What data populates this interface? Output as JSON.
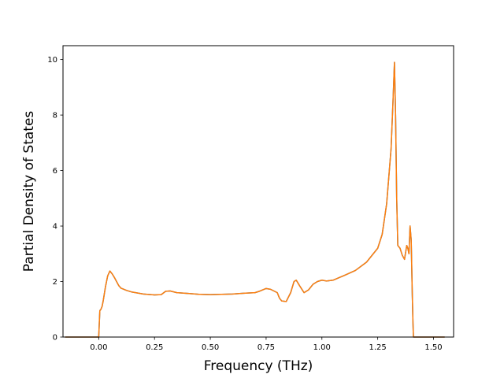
{
  "chart_data": {
    "type": "line",
    "title": "",
    "xlabel": "Frequency (THz)",
    "ylabel": "Partial Density of States",
    "xlim": [
      -0.16,
      1.59
    ],
    "ylim": [
      0,
      10.5
    ],
    "x_ticks": [
      0.0,
      0.25,
      0.5,
      0.75,
      1.0,
      1.25,
      1.5
    ],
    "x_tick_labels": [
      "0.00",
      "0.25",
      "0.50",
      "0.75",
      "1.00",
      "1.25",
      "1.50"
    ],
    "y_ticks": [
      0,
      2,
      4,
      6,
      8,
      10
    ],
    "y_tick_labels": [
      "0",
      "2",
      "4",
      "6",
      "8",
      "10"
    ],
    "grid": false,
    "legend": "none",
    "series": [
      {
        "color": "#1f77b4",
        "x": [
          -0.15,
          -0.05,
          0.0,
          0.005,
          0.01,
          0.015,
          0.02,
          0.03,
          0.04,
          0.05,
          0.06,
          0.07,
          0.08,
          0.09,
          0.1,
          0.125,
          0.15,
          0.2,
          0.25,
          0.28,
          0.3,
          0.32,
          0.35,
          0.4,
          0.45,
          0.5,
          0.55,
          0.6,
          0.65,
          0.7,
          0.72,
          0.75,
          0.77,
          0.8,
          0.81,
          0.82,
          0.84,
          0.86,
          0.875,
          0.885,
          0.9,
          0.92,
          0.94,
          0.96,
          0.98,
          1.0,
          1.02,
          1.05,
          1.08,
          1.1,
          1.15,
          1.2,
          1.25,
          1.27,
          1.29,
          1.31,
          1.32,
          1.325,
          1.33,
          1.335,
          1.34,
          1.35,
          1.36,
          1.37,
          1.38,
          1.385,
          1.39,
          1.395,
          1.4,
          1.405,
          1.408,
          1.41,
          1.5,
          1.55
        ],
        "y": [
          0,
          0,
          0,
          0.95,
          1.0,
          1.1,
          1.3,
          1.8,
          2.2,
          2.38,
          2.28,
          2.15,
          2.0,
          1.85,
          1.76,
          1.68,
          1.62,
          1.55,
          1.52,
          1.53,
          1.65,
          1.66,
          1.6,
          1.57,
          1.54,
          1.53,
          1.54,
          1.55,
          1.58,
          1.6,
          1.65,
          1.75,
          1.72,
          1.6,
          1.4,
          1.3,
          1.28,
          1.6,
          2.0,
          2.05,
          1.85,
          1.6,
          1.7,
          1.9,
          2.0,
          2.05,
          2.02,
          2.05,
          2.15,
          2.22,
          2.4,
          2.7,
          3.2,
          3.7,
          4.8,
          6.8,
          8.8,
          9.9,
          8.0,
          5.0,
          3.3,
          3.2,
          2.95,
          2.8,
          3.3,
          3.2,
          3.0,
          4.0,
          3.5,
          1.5,
          0.5,
          0,
          0,
          0
        ]
      },
      {
        "color": "#ff7f0e",
        "x": [
          -0.15,
          -0.05,
          0.0,
          0.005,
          0.01,
          0.015,
          0.02,
          0.03,
          0.04,
          0.05,
          0.06,
          0.07,
          0.08,
          0.09,
          0.1,
          0.125,
          0.15,
          0.2,
          0.25,
          0.28,
          0.3,
          0.32,
          0.35,
          0.4,
          0.45,
          0.5,
          0.55,
          0.6,
          0.65,
          0.7,
          0.72,
          0.75,
          0.77,
          0.8,
          0.81,
          0.82,
          0.84,
          0.86,
          0.875,
          0.885,
          0.9,
          0.92,
          0.94,
          0.96,
          0.98,
          1.0,
          1.02,
          1.05,
          1.08,
          1.1,
          1.15,
          1.2,
          1.25,
          1.27,
          1.29,
          1.31,
          1.32,
          1.325,
          1.33,
          1.335,
          1.34,
          1.35,
          1.36,
          1.37,
          1.38,
          1.385,
          1.39,
          1.395,
          1.4,
          1.405,
          1.408,
          1.41,
          1.5,
          1.55
        ],
        "y": [
          0,
          0,
          0,
          0.95,
          1.0,
          1.1,
          1.3,
          1.8,
          2.2,
          2.38,
          2.28,
          2.15,
          2.0,
          1.85,
          1.76,
          1.68,
          1.62,
          1.55,
          1.52,
          1.53,
          1.65,
          1.66,
          1.6,
          1.57,
          1.54,
          1.53,
          1.54,
          1.55,
          1.58,
          1.6,
          1.65,
          1.75,
          1.72,
          1.6,
          1.4,
          1.3,
          1.28,
          1.6,
          2.0,
          2.05,
          1.85,
          1.6,
          1.7,
          1.9,
          2.0,
          2.05,
          2.02,
          2.05,
          2.15,
          2.22,
          2.4,
          2.7,
          3.2,
          3.7,
          4.8,
          6.8,
          8.8,
          9.9,
          8.0,
          5.0,
          3.3,
          3.2,
          2.95,
          2.8,
          3.3,
          3.2,
          3.0,
          4.0,
          3.5,
          1.5,
          0.5,
          0,
          0,
          0
        ]
      }
    ]
  }
}
